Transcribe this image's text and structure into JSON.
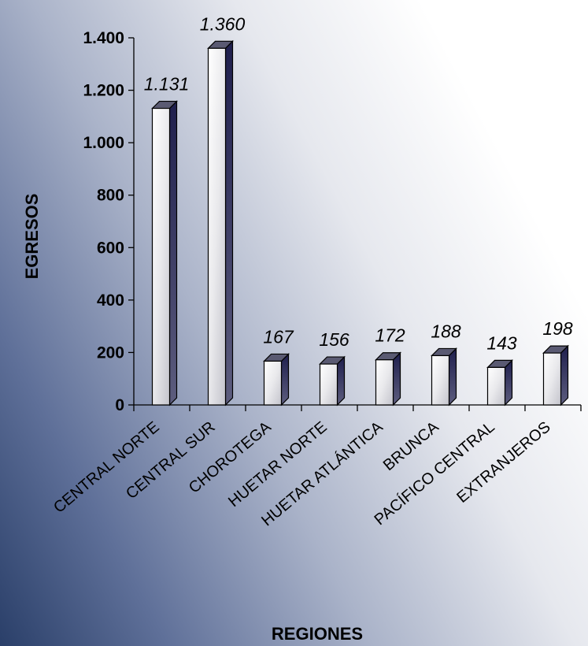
{
  "chart_data": {
    "type": "bar",
    "title": "",
    "xlabel": "REGIONES",
    "ylabel": "EGRESOS",
    "categories": [
      "CENTRAL NORTE",
      "CENTRAL SUR",
      "CHOROTEGA",
      "HUETAR  NORTE",
      "HUETAR  ATLÁNTICA",
      "BRUNCA",
      "PACÍFICO  CENTRAL",
      "EXTRANJEROS"
    ],
    "values": [
      1131,
      1360,
      167,
      156,
      172,
      188,
      143,
      198
    ],
    "value_labels": [
      "1.131",
      "1.360",
      "167",
      "156",
      "172",
      "188",
      "143",
      "198"
    ],
    "ylim": [
      0,
      1400
    ],
    "yticks": [
      0,
      200,
      400,
      600,
      800,
      1000,
      1200,
      1400
    ],
    "ytick_labels": [
      "0",
      "200",
      "400",
      "600",
      "800",
      "1.000",
      "1.200",
      "1.400"
    ],
    "grid": false,
    "legend": "none",
    "bar_style": "3d-column",
    "colors": {
      "bar_face_light": "#f2f2f2",
      "bar_face_dark": "#c8c8c8",
      "bar_side": "#1f1f4d",
      "bar_top": "#5a5a72",
      "background_dark": "#2a3f69"
    }
  }
}
